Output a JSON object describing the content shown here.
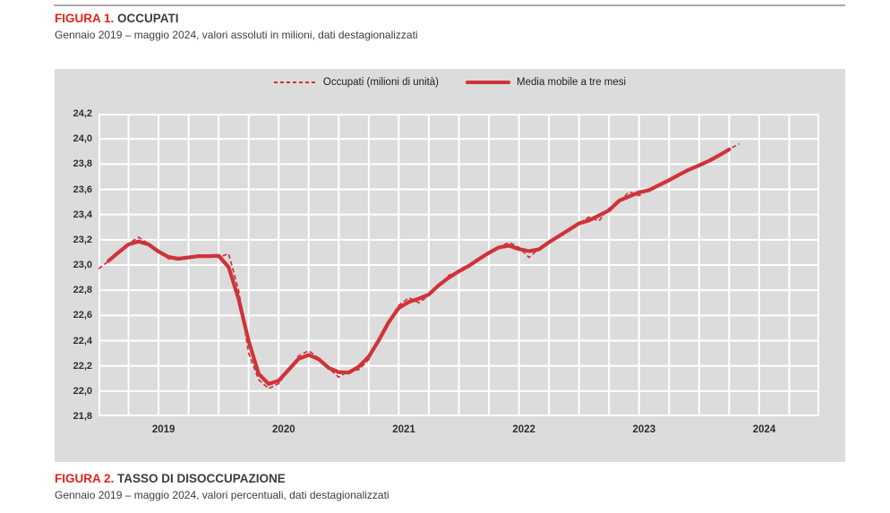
{
  "colors": {
    "accent_red": "#e2231a",
    "line_red": "#cf3339",
    "panel_gray": "#dcdcdc",
    "grid_white": "#ffffff",
    "text_dark": "#3d3d3d"
  },
  "figure1": {
    "label": "FIGURA 1.",
    "title": "OCCUPATI",
    "subtitle": "Gennaio 2019 – maggio 2024, valori assoluti in milioni, dati destagionalizzati"
  },
  "figure2": {
    "label": "FIGURA 2.",
    "title": "TASSO DI DISOCCUPAZIONE",
    "subtitle": "Gennaio 2019 – maggio 2024, valori percentuali, dati destagionalizzati"
  },
  "chart_data": {
    "type": "line",
    "title": "Occupati, gennaio 2019 – maggio 2024, milioni",
    "x_start": "2019-01",
    "x_end": "2024-05",
    "x_axis_years": [
      "2019",
      "2020",
      "2021",
      "2022",
      "2023",
      "2024"
    ],
    "x_axis_span_months": 72,
    "grid": true,
    "gridline_interval_months": 3,
    "ylim": [
      21.8,
      24.2
    ],
    "y_tick_step": 0.2,
    "y_tick_labels": [
      "24,2",
      "24,0",
      "23,8",
      "23,6",
      "23,4",
      "23,2",
      "23,0",
      "22,8",
      "22,6",
      "22,4",
      "22,2",
      "22,0",
      "21,8"
    ],
    "legend_position": "top-center",
    "series": [
      {
        "name": "Occupati (milioni di unità)",
        "style": "dashed",
        "color": "#cf3339",
        "frequency": "monthly",
        "values": [
          22.97,
          23.03,
          23.1,
          23.17,
          23.22,
          23.17,
          23.1,
          23.05,
          23.04,
          23.06,
          23.08,
          23.07,
          23.06,
          23.09,
          22.8,
          22.3,
          22.09,
          22.02,
          22.06,
          22.17,
          22.28,
          22.32,
          22.26,
          22.18,
          22.11,
          22.16,
          22.17,
          22.25,
          22.4,
          22.56,
          22.68,
          22.74,
          22.7,
          22.76,
          22.84,
          22.92,
          22.94,
          22.99,
          23.05,
          23.1,
          23.14,
          23.18,
          23.14,
          23.06,
          23.13,
          23.18,
          23.23,
          23.28,
          23.33,
          23.38,
          23.35,
          23.45,
          23.5,
          23.58,
          23.55,
          23.6,
          23.63,
          23.67,
          23.72,
          23.76,
          23.79,
          23.82,
          23.87,
          23.92,
          23.96
        ]
      },
      {
        "name": "Media mobile a tre mesi",
        "style": "solid",
        "color": "#cf3339",
        "derived": "centered 3-month moving average of series 0"
      }
    ]
  }
}
